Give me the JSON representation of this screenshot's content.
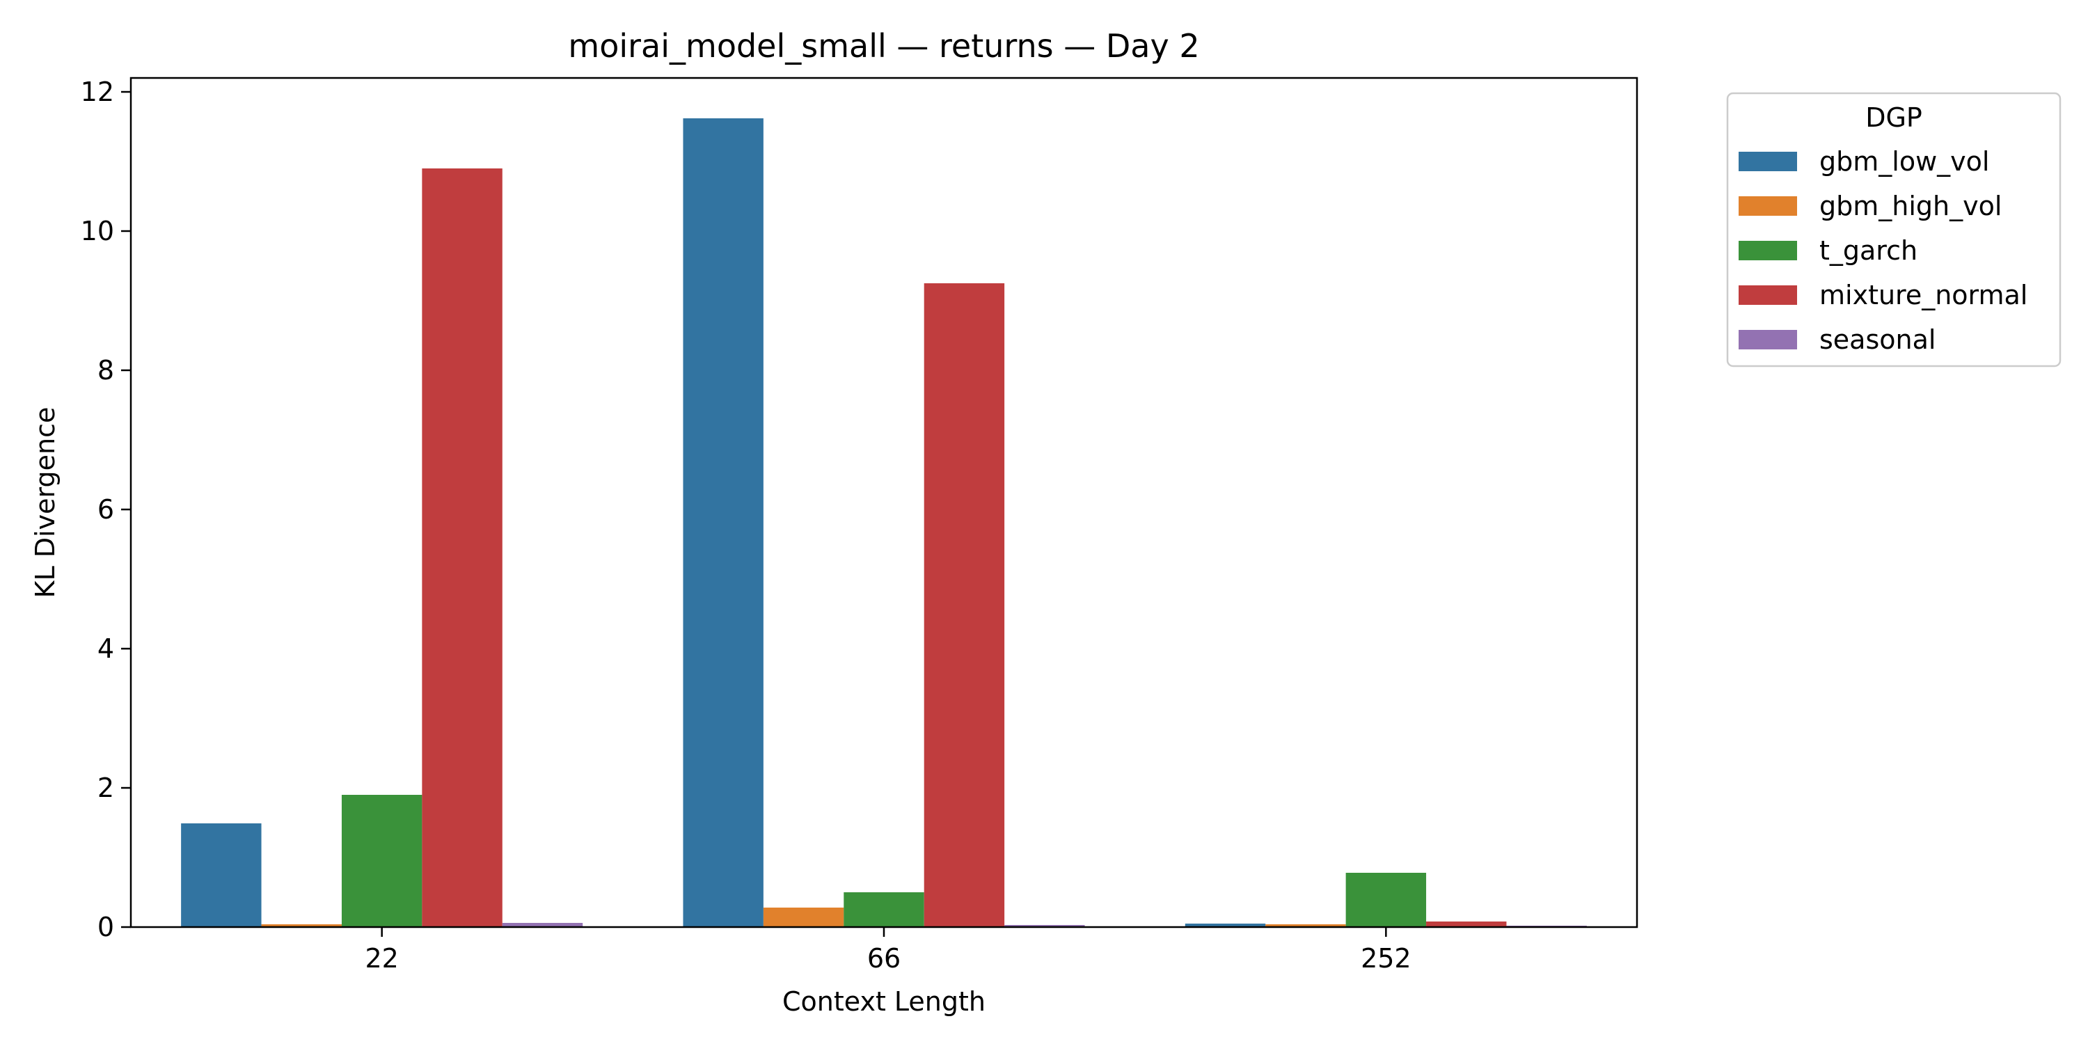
{
  "chart_data": {
    "type": "bar",
    "title": "moirai_model_small — returns — Day 2",
    "xlabel": "Context Length",
    "ylabel": "KL Divergence",
    "categories": [
      "22",
      "66",
      "252"
    ],
    "ylim": [
      0,
      12.2
    ],
    "yticks": [
      0,
      2,
      4,
      6,
      8,
      10,
      12
    ],
    "grid": false,
    "legend": {
      "title": "DGP",
      "placement": "outside-top-right"
    },
    "series": [
      {
        "name": "gbm_low_vol",
        "color": "#3274a1",
        "values": [
          1.49,
          11.62,
          0.05
        ]
      },
      {
        "name": "gbm_high_vol",
        "color": "#e1812c",
        "values": [
          0.04,
          0.28,
          0.04
        ]
      },
      {
        "name": "t_garch",
        "color": "#3a923a",
        "values": [
          1.9,
          0.5,
          0.78
        ]
      },
      {
        "name": "mixture_normal",
        "color": "#c03d3e",
        "values": [
          10.9,
          9.25,
          0.08
        ]
      },
      {
        "name": "seasonal",
        "color": "#9372b2",
        "values": [
          0.06,
          0.03,
          0.02
        ]
      }
    ]
  }
}
